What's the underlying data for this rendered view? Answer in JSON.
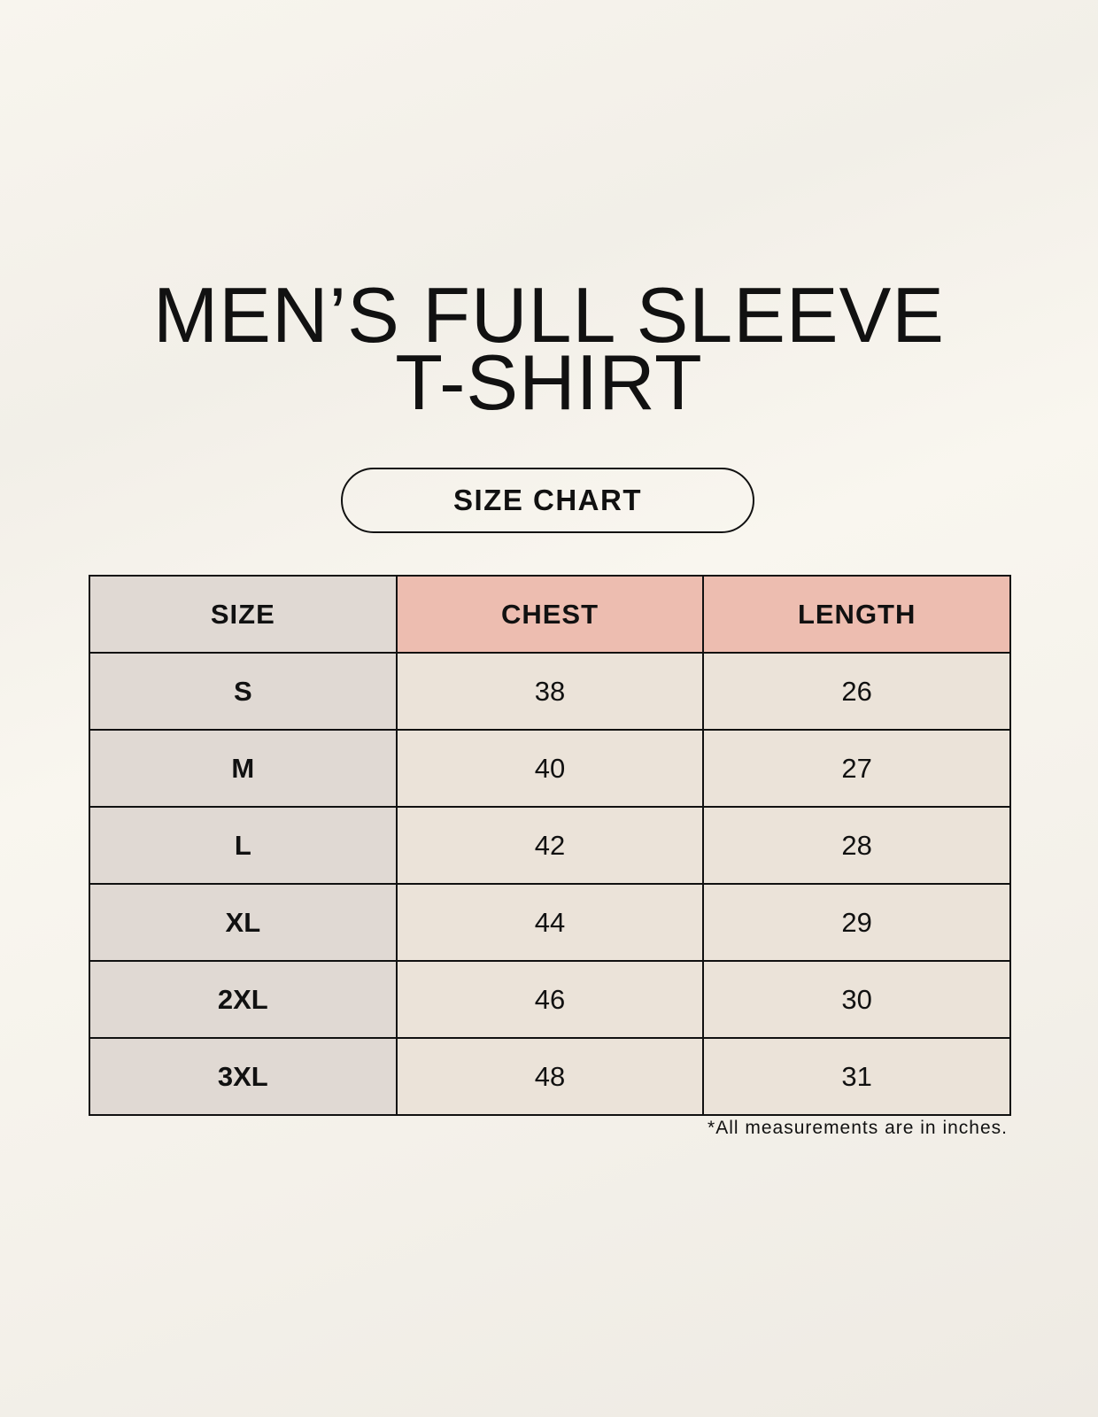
{
  "title_line1": "MEN’S FULL SLEEVE",
  "title_line2": "T-SHIRT",
  "badge": "SIZE CHART",
  "table": {
    "headers": [
      "SIZE",
      "CHEST",
      "LENGTH"
    ],
    "rows": [
      [
        "S",
        "38",
        "26"
      ],
      [
        "M",
        "40",
        "27"
      ],
      [
        "L",
        "42",
        "28"
      ],
      [
        "XL",
        "44",
        "29"
      ],
      [
        "2XL",
        "46",
        "30"
      ],
      [
        "3XL",
        "48",
        "31"
      ]
    ]
  },
  "footnote": "*All measurements are in inches.",
  "colors": {
    "size_column": "#e0d9d3",
    "measure_header": "#edbdb0",
    "cell": "#ebe3d9"
  }
}
